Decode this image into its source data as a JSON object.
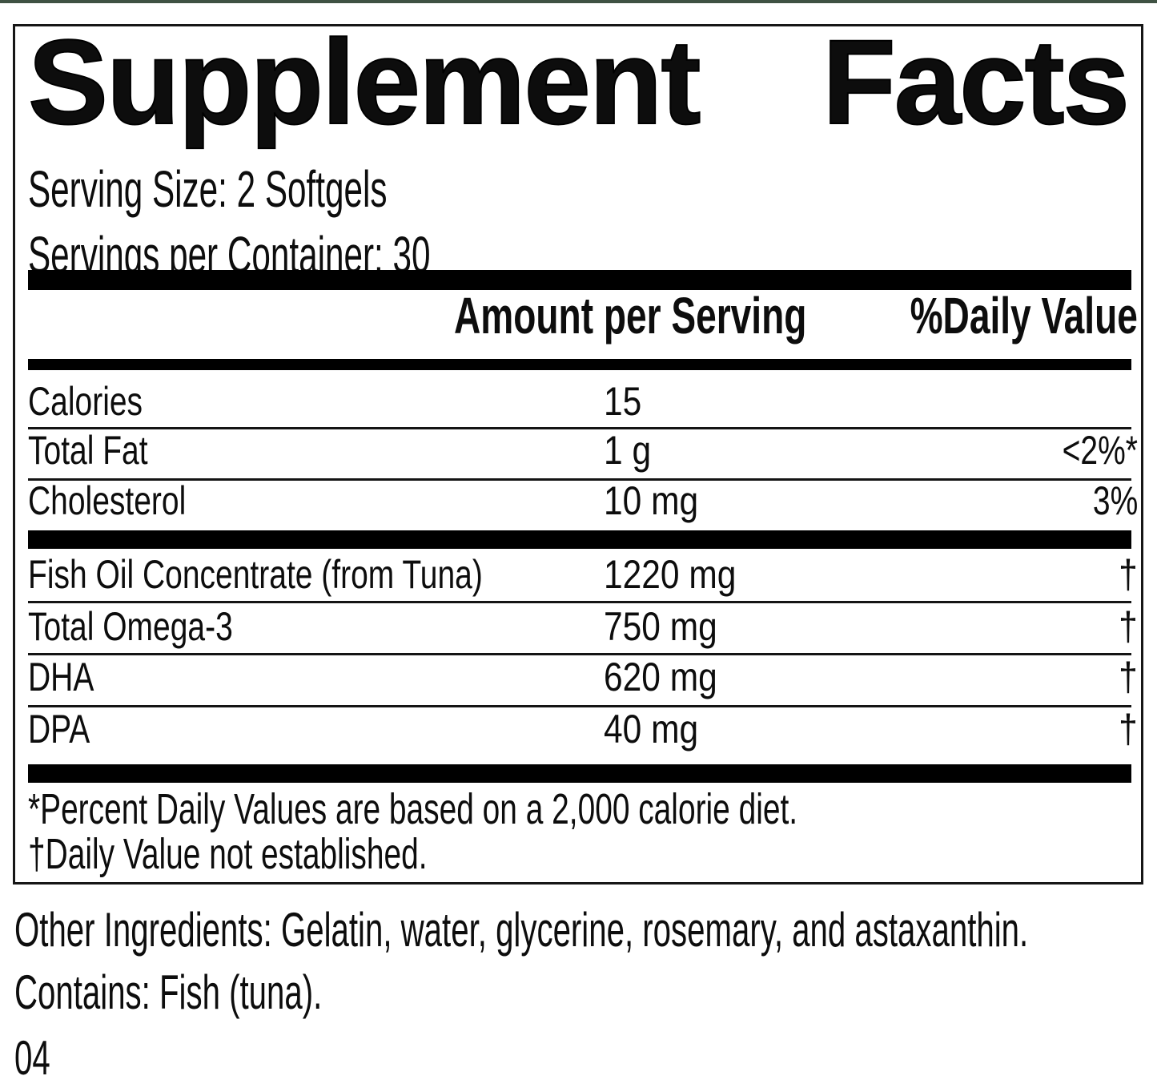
{
  "page": {
    "top_line_color": "#3f5243",
    "page_code": "04"
  },
  "panel": {
    "title_word1": "Supplement",
    "title_word2": "Facts",
    "serving_size": "Serving Size: 2 Softgels",
    "servings_per_container": "Servings per Container: 30",
    "columns": {
      "amount_header": "Amount per Serving",
      "daily_value_header": "%Daily Value"
    },
    "rows": [
      {
        "nutrient": "Calories",
        "amount": "15",
        "dv": ""
      },
      {
        "nutrient": "Total Fat",
        "amount": "1 g",
        "dv": "<2%*"
      },
      {
        "nutrient": "Cholesterol",
        "amount": "10 mg",
        "dv": "3%"
      },
      {
        "nutrient": "Fish Oil Concentrate (from Tuna)",
        "amount": "1220 mg",
        "dv": "†"
      },
      {
        "nutrient": "Total Omega-3",
        "amount": "750 mg",
        "dv": "†"
      },
      {
        "nutrient": "DHA",
        "amount": "620 mg",
        "dv": "†"
      },
      {
        "nutrient": "DPA",
        "amount": "40 mg",
        "dv": "†"
      }
    ],
    "footnotes": [
      "*Percent Daily Values are based on a 2,000 calorie diet.",
      "†Daily Value not established."
    ]
  },
  "below_panel": {
    "other_ingredients": "Other Ingredients: Gelatin, water, glycerine, rosemary, and astaxanthin.",
    "contains": "Contains: Fish (tuna)."
  }
}
